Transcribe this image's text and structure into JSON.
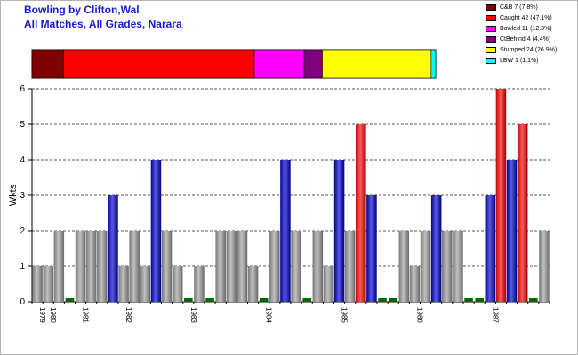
{
  "title": "Bowling by Clifton,Wal",
  "subtitle": "All Matches, All Grades, Narara",
  "dismissals": [
    {
      "label": "C&B 7 (7.8%)",
      "value": 7,
      "color": "#800000"
    },
    {
      "label": "Caught 42 (47.1%)",
      "value": 42,
      "color": "#ff0000"
    },
    {
      "label": "Bowled 11 (12.3%)",
      "value": 11,
      "color": "#ff00ff"
    },
    {
      "label": "CtBehind 4 (4.4%)",
      "value": 4,
      "color": "#800080"
    },
    {
      "label": "Stumped 24 (26.9%)",
      "value": 24,
      "color": "#ffff00"
    },
    {
      "label": "LBW 1 (1.1%)",
      "value": 1,
      "color": "#00ffff"
    }
  ],
  "chart_data": {
    "type": "bar",
    "ylabel": "Wkts",
    "ylim": [
      0,
      6
    ],
    "yticks": [
      0,
      1,
      2,
      3,
      4,
      5,
      6
    ],
    "grid": true,
    "x_tick_labels": [
      "1979",
      "1980",
      "1981",
      "1982",
      "1983",
      "1984",
      "1985",
      "1986",
      "1987"
    ],
    "series_colors": {
      "gray": "#a0a0a0",
      "blue": "#0000cc",
      "red": "#ff0000",
      "green": "#006600"
    },
    "values": [
      1,
      1,
      2,
      0,
      2,
      2,
      2,
      3,
      1,
      2,
      1,
      4,
      2,
      1,
      0,
      1,
      0,
      2,
      2,
      2,
      1,
      0,
      2,
      4,
      2,
      0,
      2,
      1,
      4,
      2,
      5,
      3,
      0,
      0,
      2,
      1,
      2,
      3,
      2,
      2,
      0,
      0,
      3,
      6,
      4,
      5,
      0,
      2
    ],
    "colors": [
      "gray",
      "gray",
      "gray",
      "green",
      "gray",
      "gray",
      "gray",
      "blue",
      "gray",
      "gray",
      "gray",
      "blue",
      "gray",
      "gray",
      "green",
      "gray",
      "green",
      "gray",
      "gray",
      "gray",
      "gray",
      "green",
      "gray",
      "blue",
      "gray",
      "green",
      "gray",
      "gray",
      "blue",
      "gray",
      "red",
      "blue",
      "green",
      "green",
      "gray",
      "gray",
      "gray",
      "blue",
      "gray",
      "gray",
      "green",
      "green",
      "blue",
      "red",
      "blue",
      "red",
      "green",
      "gray"
    ]
  }
}
